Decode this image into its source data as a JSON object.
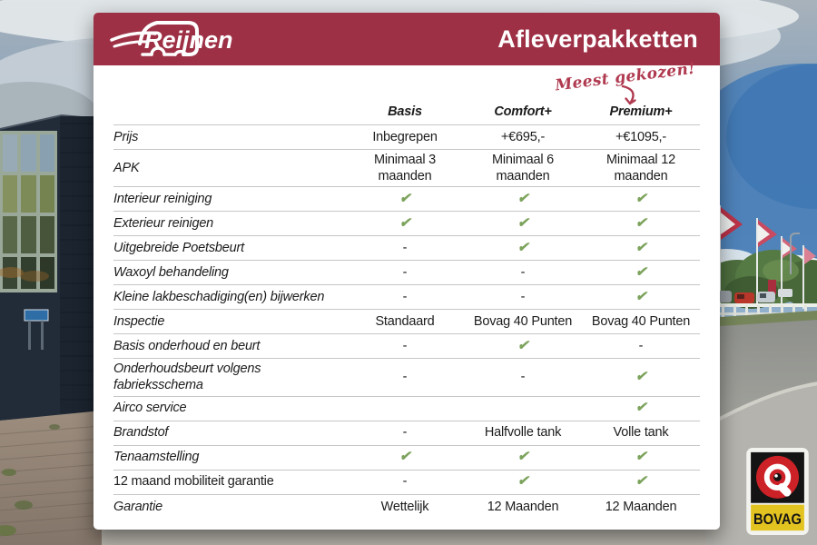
{
  "header": {
    "brand": "Reijnen",
    "title": "Afleverpakketten"
  },
  "annotation": {
    "text": "Meest gekozen!",
    "target_column": "Premium+"
  },
  "table": {
    "columns": [
      "Basis",
      "Comfort+",
      "Premium+"
    ],
    "check_symbol": "✔",
    "rows": [
      {
        "label": "Prijs",
        "values": [
          "Inbegrepen",
          "+€695,-",
          "+€1095,-"
        ]
      },
      {
        "label": "APK",
        "values": [
          "Minimaal 3 maanden",
          "Minimaal 6 maanden",
          "Minimaal 12 maanden"
        ]
      },
      {
        "label": "Interieur reiniging",
        "values": [
          "✔",
          "✔",
          "✔"
        ]
      },
      {
        "label": "Exterieur reinigen",
        "values": [
          "✔",
          "✔",
          "✔"
        ]
      },
      {
        "label": "Uitgebreide Poetsbeurt",
        "values": [
          "-",
          "✔",
          "✔"
        ]
      },
      {
        "label": "Waxoyl behandeling",
        "values": [
          "-",
          "-",
          "✔"
        ]
      },
      {
        "label": "Kleine lakbeschadiging(en) bijwerken",
        "values": [
          "-",
          "-",
          "✔"
        ]
      },
      {
        "label": "Inspectie",
        "values": [
          "Standaard",
          "Bovag 40 Punten",
          "Bovag 40 Punten"
        ]
      },
      {
        "label": "Basis onderhoud en beurt",
        "values": [
          "-",
          "✔",
          "-"
        ]
      },
      {
        "label": "Onderhoudsbeurt volgens fabrieksschema",
        "values": [
          "-",
          "-",
          "✔"
        ]
      },
      {
        "label": "Airco service",
        "values": [
          "",
          "",
          "✔"
        ]
      },
      {
        "label": "Brandstof",
        "values": [
          "-",
          "Halfvolle tank",
          "Volle tank"
        ]
      },
      {
        "label": "Tenaamstelling",
        "values": [
          "✔",
          "✔",
          "✔"
        ]
      },
      {
        "label": "12 maand mobiliteit garantie",
        "italic": false,
        "values": [
          "-",
          "✔",
          "✔"
        ]
      },
      {
        "label": "Garantie",
        "values": [
          "Wettelijk",
          "12 Maanden",
          "12 Maanden"
        ]
      }
    ]
  },
  "badge": {
    "label": "BOVAG"
  },
  "colors": {
    "header_red": "#9e3046",
    "annotation_red": "#b03a50",
    "check_green": "#7ca35c",
    "bovag_red": "#cc2127",
    "bovag_yellow": "#e3c320"
  }
}
